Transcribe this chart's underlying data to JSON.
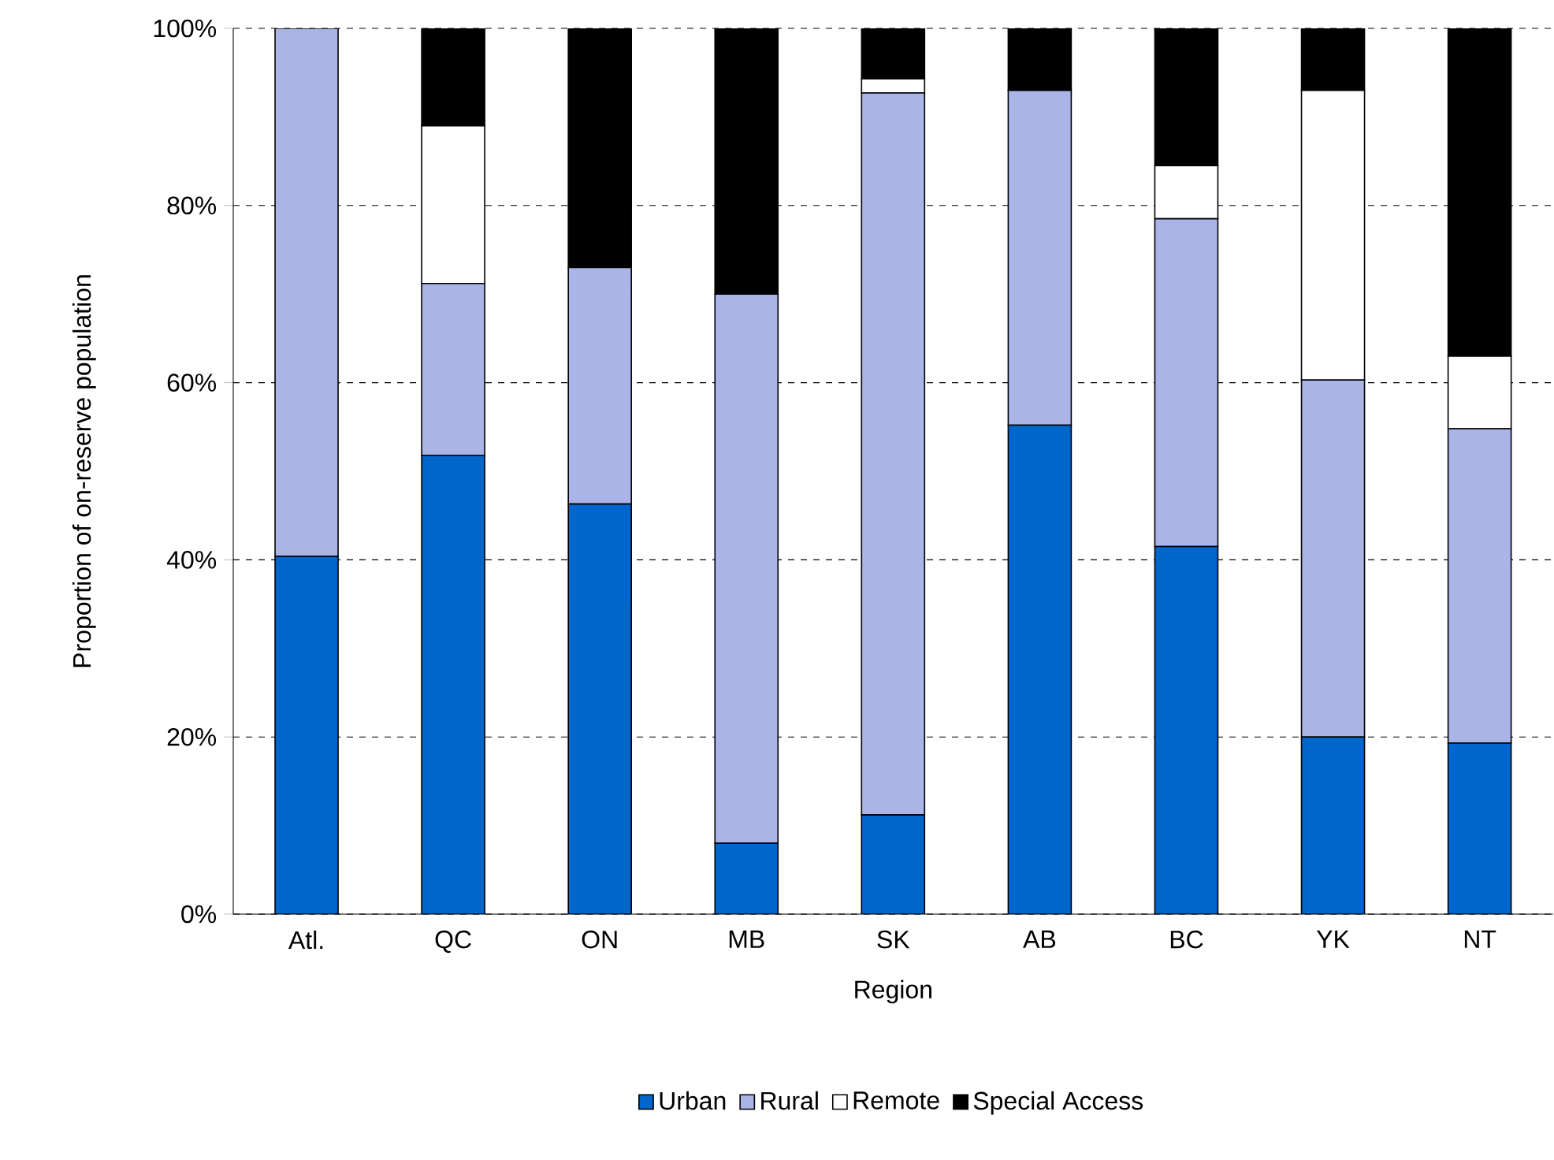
{
  "chart_data": {
    "type": "bar",
    "stacked": true,
    "xlabel": "Region",
    "ylabel": "Proportion of on-reserve population",
    "categories": [
      "Atl.",
      "QC",
      "ON",
      "MB",
      "SK",
      "AB",
      "BC",
      "YK",
      "NT"
    ],
    "series": [
      {
        "name": "Urban",
        "color": "#0066cc",
        "values": [
          40.4,
          51.8,
          46.3,
          8,
          11.2,
          55.2,
          41.5,
          20,
          19.3
        ]
      },
      {
        "name": "Rural",
        "color": "#aab4e6",
        "values": [
          59.6,
          19.4,
          26.7,
          62,
          81.5,
          37.8,
          37,
          40.3,
          35.5
        ]
      },
      {
        "name": "Remote",
        "color": "#ffffff",
        "values": [
          0,
          17.8,
          0,
          0,
          1.6,
          0,
          6,
          32.7,
          8.2
        ]
      },
      {
        "name": "Special Access",
        "color": "#000000",
        "values": [
          0,
          11,
          27,
          30,
          5.7,
          7,
          15.5,
          7,
          37
        ]
      }
    ],
    "ylim": [
      0,
      100
    ],
    "yticks": [
      {
        "value": 0,
        "label": "0%"
      },
      {
        "value": 20,
        "label": "20%"
      },
      {
        "value": 40,
        "label": "40%"
      },
      {
        "value": 60,
        "label": "60%"
      },
      {
        "value": 80,
        "label": "80%"
      },
      {
        "value": 100,
        "label": "100%"
      }
    ],
    "grid": "y",
    "legend": "bottom"
  }
}
